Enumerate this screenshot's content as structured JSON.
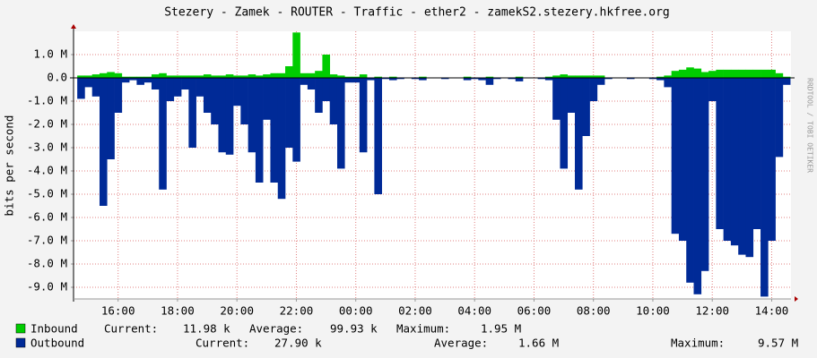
{
  "chart_data": {
    "type": "area",
    "title": "Stezery - Zamek - ROUTER - Traffic - ether2 - zamekS2.stezery.hkfree.org",
    "y_label": "bits per second",
    "watermark": "RRDTOOL / TOBI OETIKER",
    "grid": true,
    "xlim": [
      14.5,
      38.65
    ],
    "ylim": [
      -9.5,
      2.0
    ],
    "xticks": [
      {
        "value": 16,
        "label": "16:00"
      },
      {
        "value": 18,
        "label": "18:00"
      },
      {
        "value": 20,
        "label": "20:00"
      },
      {
        "value": 22,
        "label": "22:00"
      },
      {
        "value": 24,
        "label": "00:00"
      },
      {
        "value": 26,
        "label": "02:00"
      },
      {
        "value": 28,
        "label": "04:00"
      },
      {
        "value": 30,
        "label": "06:00"
      },
      {
        "value": 32,
        "label": "08:00"
      },
      {
        "value": 34,
        "label": "10:00"
      },
      {
        "value": 36,
        "label": "12:00"
      },
      {
        "value": 38,
        "label": "14:00"
      }
    ],
    "yticks": [
      {
        "value": 1,
        "label": "1.0 M"
      },
      {
        "value": 0,
        "label": "0.0"
      },
      {
        "value": -1,
        "label": "-1.0 M"
      },
      {
        "value": -2,
        "label": "-2.0 M"
      },
      {
        "value": -3,
        "label": "-3.0 M"
      },
      {
        "value": -4,
        "label": "-4.0 M"
      },
      {
        "value": -5,
        "label": "-5.0 M"
      },
      {
        "value": -6,
        "label": "-6.0 M"
      },
      {
        "value": -7,
        "label": "-7.0 M"
      },
      {
        "value": -8,
        "label": "-8.0 M"
      },
      {
        "value": -9,
        "label": "-9.0 M"
      }
    ],
    "x": [
      14.75,
      15,
      15.25,
      15.5,
      15.75,
      16,
      16.25,
      16.5,
      16.75,
      17,
      17.25,
      17.5,
      17.75,
      18,
      18.25,
      18.5,
      18.75,
      19,
      19.25,
      19.5,
      19.75,
      20,
      20.25,
      20.5,
      20.75,
      21,
      21.25,
      21.5,
      21.75,
      22,
      22.25,
      22.5,
      22.75,
      23,
      23.25,
      23.5,
      23.75,
      24,
      24.25,
      24.5,
      24.75,
      25,
      25.25,
      25.5,
      25.75,
      26,
      26.25,
      26.5,
      26.75,
      27,
      27.25,
      27.5,
      27.75,
      28,
      28.25,
      28.5,
      28.75,
      29,
      29.25,
      29.5,
      29.75,
      30,
      30.25,
      30.5,
      30.75,
      31,
      31.25,
      31.5,
      31.75,
      32,
      32.25,
      32.5,
      32.75,
      33,
      33.25,
      33.5,
      33.75,
      34,
      34.25,
      34.5,
      34.75,
      35,
      35.25,
      35.5,
      35.75,
      36,
      36.25,
      36.5,
      36.75,
      37,
      37.25,
      37.5,
      37.75,
      38,
      38.25,
      38.5
    ],
    "series": [
      {
        "name": "Inbound",
        "color": "#00cc00",
        "stats": [
          "Current:",
          "11.98 k",
          "Average:",
          "99.93 k",
          "Maximum:",
          "1.95 M"
        ],
        "values": [
          0.1,
          0.1,
          0.15,
          0.2,
          0.25,
          0.2,
          0.05,
          0.05,
          0.05,
          0.05,
          0.15,
          0.2,
          0.1,
          0.1,
          0.1,
          0.1,
          0.1,
          0.15,
          0.1,
          0.1,
          0.15,
          0.1,
          0.1,
          0.15,
          0.1,
          0.15,
          0.2,
          0.2,
          0.5,
          1.95,
          0.2,
          0.2,
          0.3,
          1.0,
          0.15,
          0.1,
          0.05,
          0.05,
          0.15,
          0,
          0.05,
          0,
          0.05,
          0,
          0,
          0,
          0.05,
          0,
          0,
          0,
          0,
          0,
          0.05,
          0,
          0,
          0.05,
          0,
          0,
          0,
          0.05,
          0,
          0,
          0,
          0.05,
          0.1,
          0.15,
          0.1,
          0.1,
          0.1,
          0.1,
          0.1,
          0,
          0,
          0,
          0,
          0,
          0,
          0,
          0.05,
          0.1,
          0.3,
          0.35,
          0.45,
          0.4,
          0.25,
          0.3,
          0.35,
          0.35,
          0.35,
          0.35,
          0.35,
          0.35,
          0.35,
          0.35,
          0.2,
          0.05
        ]
      },
      {
        "name": "Outbound",
        "color": "#002a97",
        "stats": [
          "Current:",
          "27.90 k",
          "Average:",
          "1.66 M",
          "Maximum:",
          "9.57 M"
        ],
        "values": [
          -0.9,
          -0.4,
          -0.8,
          -5.5,
          -3.5,
          -1.5,
          -0.2,
          -0.1,
          -0.3,
          -0.2,
          -0.5,
          -4.8,
          -1.0,
          -0.8,
          -0.5,
          -3.0,
          -0.8,
          -1.5,
          -2.0,
          -3.2,
          -3.3,
          -1.2,
          -2.0,
          -3.2,
          -4.5,
          -1.8,
          -4.5,
          -5.2,
          -3.0,
          -3.6,
          -0.3,
          -0.5,
          -1.5,
          -1.0,
          -2.0,
          -3.9,
          -0.2,
          -0.2,
          -3.2,
          -0.1,
          -5.0,
          -0.05,
          -0.1,
          -0.05,
          -0.02,
          -0.05,
          -0.1,
          -0.02,
          -0.02,
          -0.05,
          -0.02,
          -0.02,
          -0.1,
          -0.05,
          -0.1,
          -0.3,
          -0.05,
          -0.02,
          -0.05,
          -0.15,
          -0.02,
          -0.02,
          -0.05,
          -0.1,
          -1.8,
          -3.9,
          -1.5,
          -4.8,
          -2.5,
          -1.0,
          -0.3,
          -0.05,
          -0.02,
          -0.02,
          -0.05,
          -0.02,
          -0.02,
          -0.05,
          -0.1,
          -0.4,
          -6.7,
          -7.0,
          -8.8,
          -9.3,
          -8.3,
          -1.0,
          -6.5,
          -7.0,
          -7.2,
          -7.6,
          -7.7,
          -6.5,
          -9.4,
          -7.0,
          -3.4,
          -0.3
        ]
      }
    ]
  }
}
